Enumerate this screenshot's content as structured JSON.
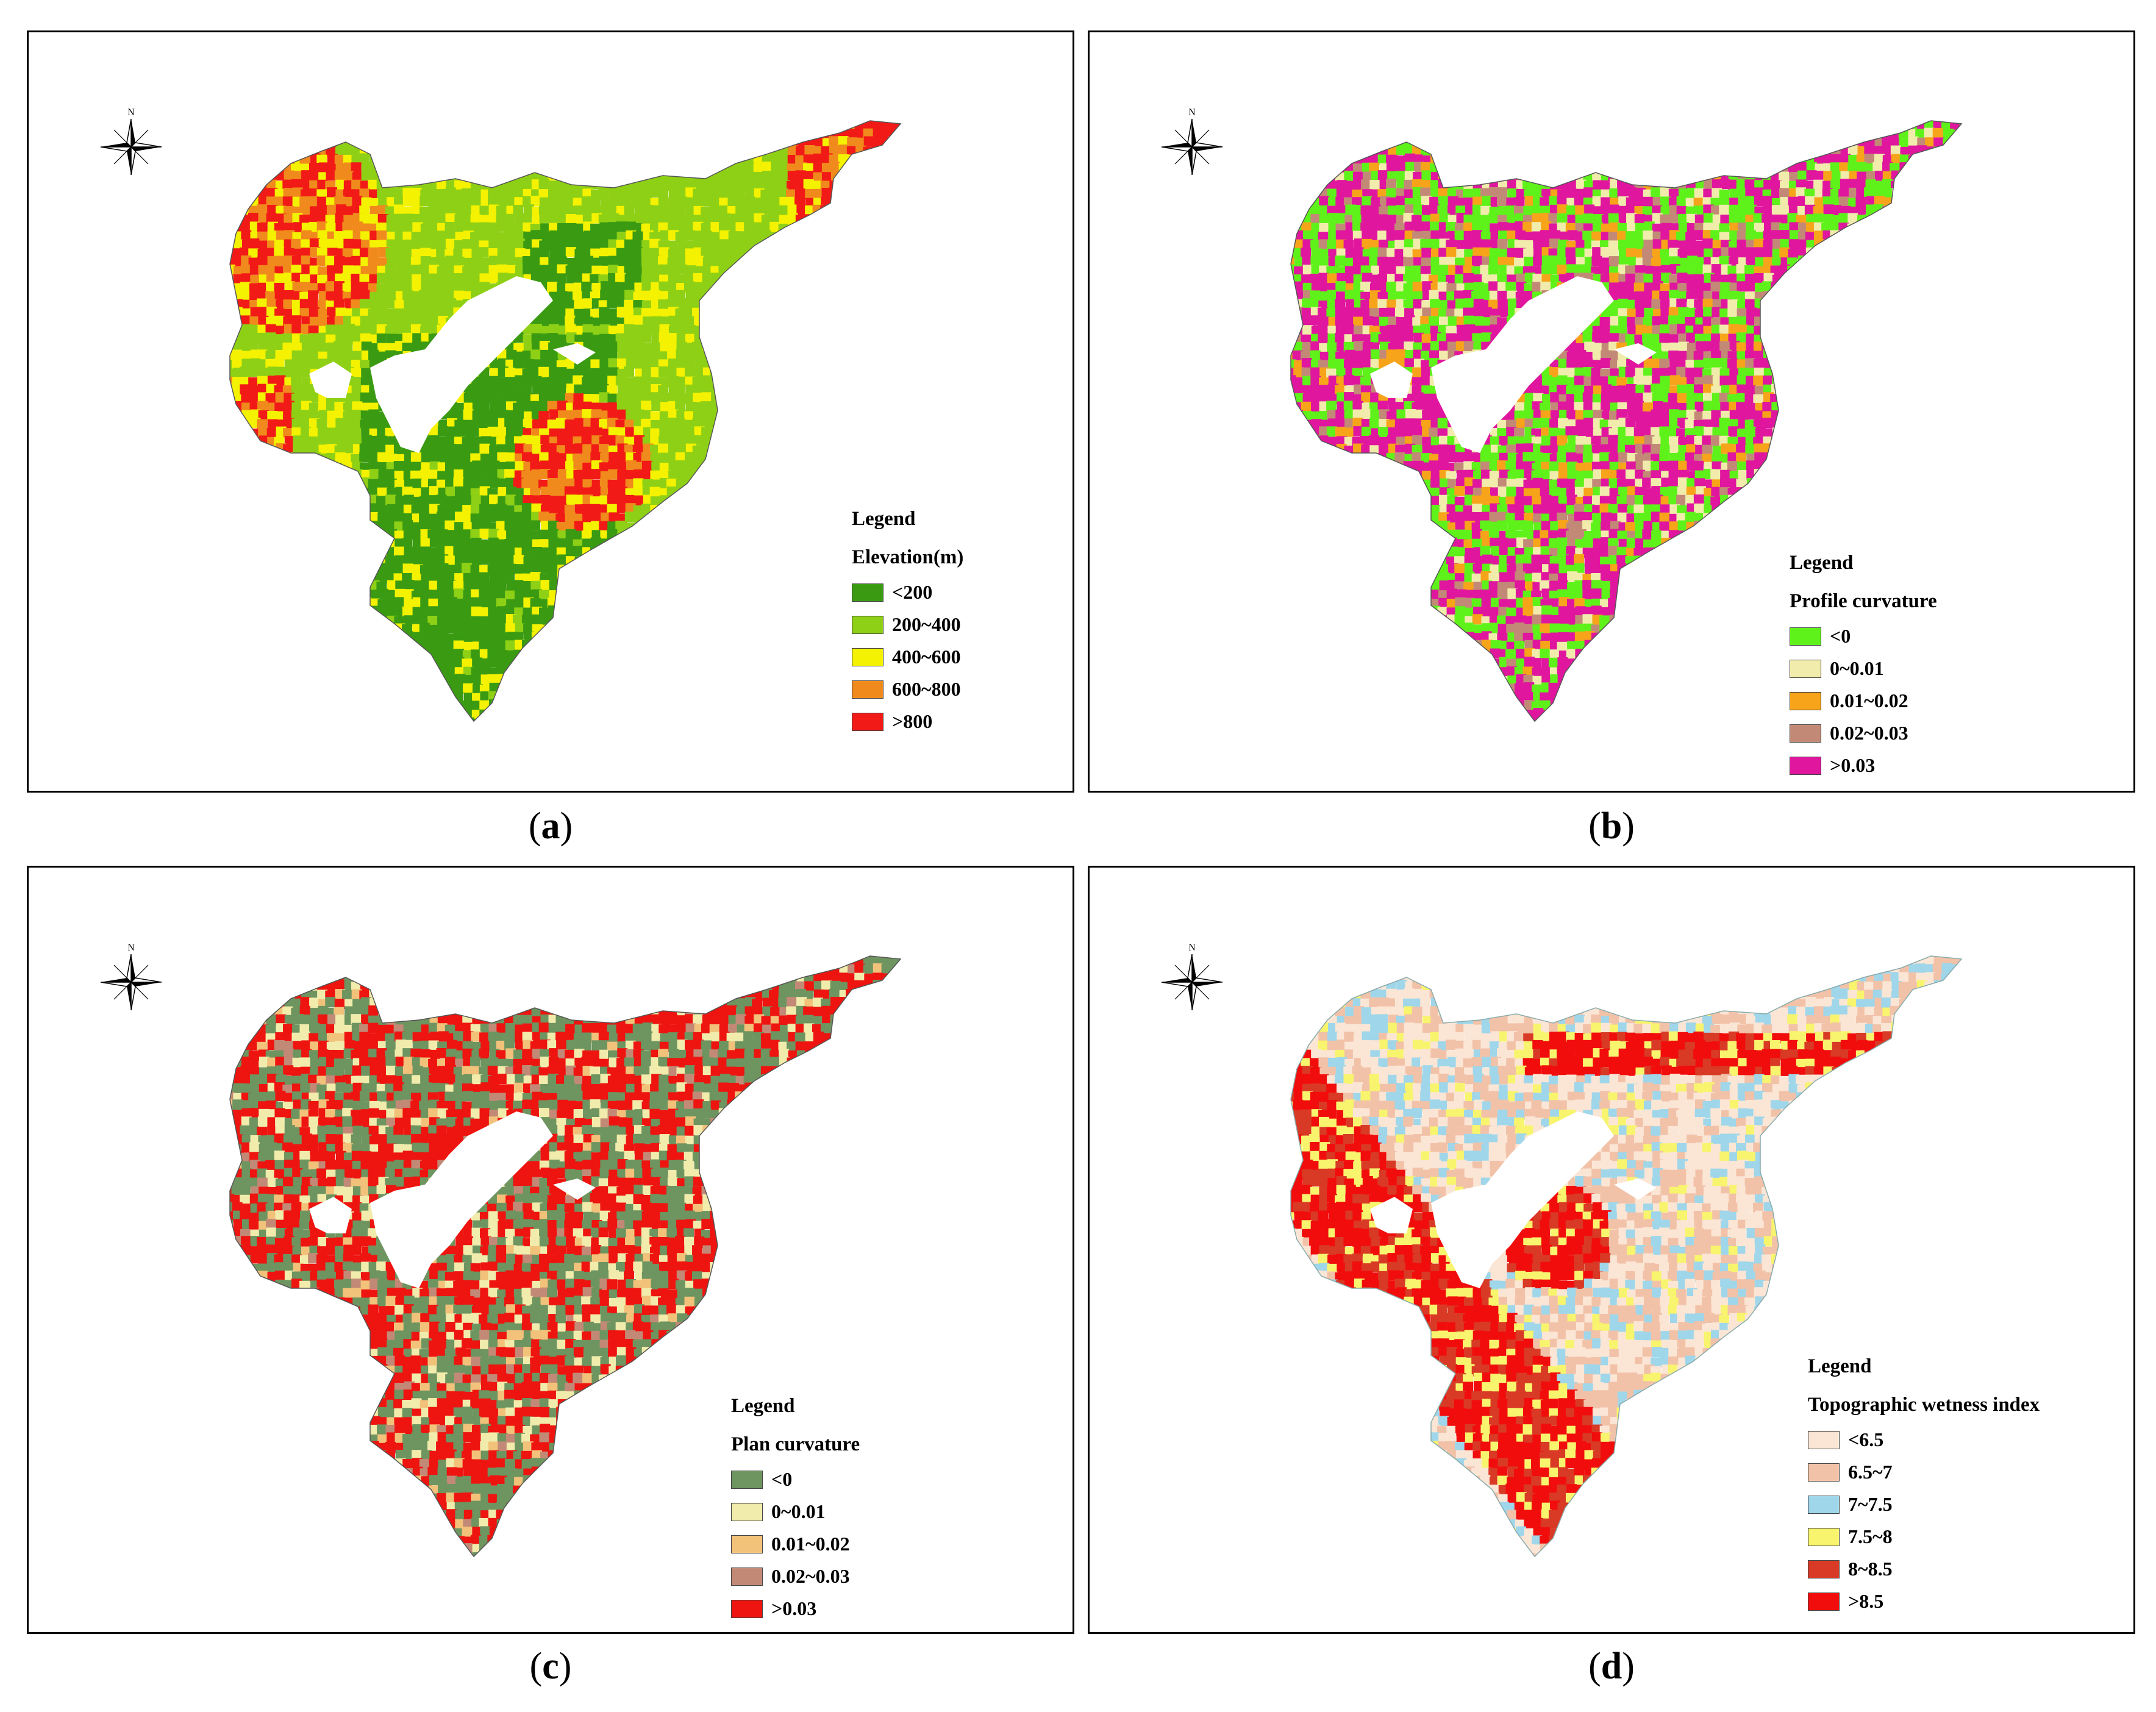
{
  "panels": [
    {
      "id": "a",
      "caption_letter": "a",
      "legend_title": "Legend",
      "legend_subtitle": "Elevation(m)",
      "compass_label": "N",
      "scheme": "elevation",
      "classes": [
        {
          "label": "<200",
          "color": "#3a9b13"
        },
        {
          "label": "200~400",
          "color": "#8ed015"
        },
        {
          "label": "400~600",
          "color": "#f4f200"
        },
        {
          "label": "600~800",
          "color": "#f08a1c"
        },
        {
          "label": ">800",
          "color": "#f21a16"
        }
      ]
    },
    {
      "id": "b",
      "caption_letter": "b",
      "legend_title": "Legend",
      "legend_subtitle": "Profile curvature",
      "compass_label": "N",
      "scheme": "profile",
      "classes": [
        {
          "label": "<0",
          "color": "#5ef21a"
        },
        {
          "label": "0~0.01",
          "color": "#f1ecac"
        },
        {
          "label": "0.01~0.02",
          "color": "#f7a41a"
        },
        {
          "label": "0.02~0.03",
          "color": "#c28a76"
        },
        {
          "label": ">0.03",
          "color": "#e0169e"
        }
      ]
    },
    {
      "id": "c",
      "caption_letter": "c",
      "legend_title": "Legend",
      "legend_subtitle": "Plan curvature",
      "compass_label": "N",
      "scheme": "plan",
      "classes": [
        {
          "label": "<0",
          "color": "#6e9460"
        },
        {
          "label": "0~0.01",
          "color": "#f1ecac"
        },
        {
          "label": "0.01~0.02",
          "color": "#f2c27a"
        },
        {
          "label": "0.02~0.03",
          "color": "#c28a76"
        },
        {
          "label": ">0.03",
          "color": "#ee1410"
        }
      ]
    },
    {
      "id": "d",
      "caption_letter": "d",
      "legend_title": "Legend",
      "legend_subtitle": "Topographic wetness index",
      "compass_label": "N",
      "scheme": "twi",
      "classes": [
        {
          "label": "<6.5",
          "color": "#fbe6d6"
        },
        {
          "label": "6.5~7",
          "color": "#f2c2a8"
        },
        {
          "label": "7~7.5",
          "color": "#9fd6ea"
        },
        {
          "label": "7.5~8",
          "color": "#f8f46e"
        },
        {
          "label": "8~8.5",
          "color": "#d83a26"
        },
        {
          "label": ">8.5",
          "color": "#f20d0d"
        }
      ]
    }
  ]
}
